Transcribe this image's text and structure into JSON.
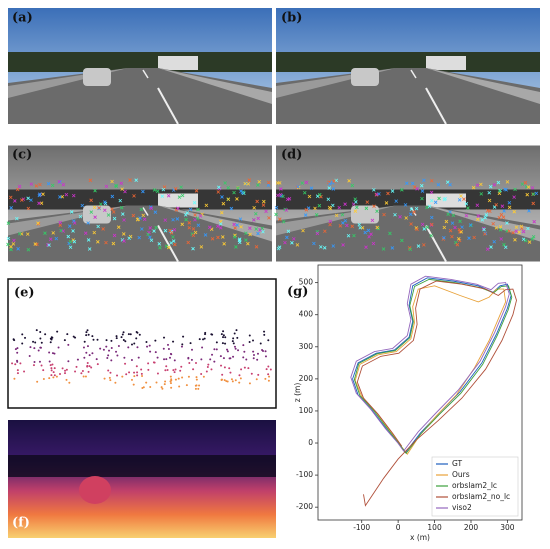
{
  "panels": {
    "a": "(a)",
    "b": "(b)",
    "c": "(c)",
    "d": "(d)",
    "e": "(e)",
    "f": "(f)",
    "g": "(g)"
  },
  "chart_data": {
    "type": "line",
    "xlabel": "x (m)",
    "ylabel": "z (m)",
    "xlim": [
      -220,
      340
    ],
    "ylim": [
      -240,
      555
    ],
    "xticks": [
      -100,
      0,
      100,
      200,
      300
    ],
    "yticks": [
      -200,
      -100,
      0,
      100,
      200,
      300,
      400,
      500
    ],
    "legend": "lower right",
    "series": [
      {
        "name": "GT",
        "color": "#1f5fbf",
        "x": [
          0,
          -30,
          -70,
          -110,
          -125,
          -110,
          -60,
          -10,
          30,
          40,
          30,
          40,
          80,
          150,
          220,
          260,
          280,
          300,
          310,
          300,
          270,
          230,
          170,
          110,
          60,
          20,
          0
        ],
        "values": [
          0,
          40,
          100,
          150,
          200,
          250,
          280,
          290,
          330,
          380,
          430,
          490,
          515,
          505,
          490,
          470,
          490,
          495,
          460,
          420,
          340,
          250,
          160,
          90,
          30,
          -30,
          0
        ]
      },
      {
        "name": "Ours",
        "color": "#e8a23a",
        "x": [
          5,
          -20,
          -60,
          -100,
          -118,
          -105,
          -55,
          -5,
          35,
          45,
          40,
          55,
          100,
          170,
          220,
          250,
          270,
          290,
          295,
          280,
          250,
          210,
          160,
          105,
          60,
          25,
          5
        ],
        "values": [
          -5,
          35,
          95,
          145,
          195,
          245,
          275,
          285,
          325,
          375,
          425,
          480,
          490,
          460,
          440,
          455,
          480,
          480,
          440,
          400,
          320,
          235,
          150,
          85,
          25,
          -35,
          -5
        ]
      },
      {
        "name": "orbslam2_lc",
        "color": "#3ca03c",
        "x": [
          3,
          -25,
          -65,
          -105,
          -120,
          -108,
          -58,
          -8,
          32,
          42,
          32,
          45,
          85,
          155,
          225,
          262,
          283,
          303,
          312,
          302,
          272,
          232,
          172,
          112,
          62,
          22,
          3
        ],
        "values": [
          -3,
          38,
          98,
          148,
          198,
          248,
          278,
          288,
          328,
          378,
          428,
          488,
          510,
          500,
          485,
          468,
          488,
          490,
          455,
          415,
          335,
          245,
          155,
          88,
          28,
          -32,
          -3
        ]
      },
      {
        "name": "orbslam2_no_lc",
        "color": "#b0503a",
        "x": [
          10,
          -15,
          -55,
          -95,
          -112,
          -98,
          -48,
          2,
          42,
          52,
          48,
          60,
          105,
          175,
          240,
          275,
          295,
          315,
          325,
          315,
          285,
          240,
          175,
          110,
          50,
          0,
          -40,
          -75,
          -90,
          -95
        ],
        "values": [
          -10,
          30,
          90,
          140,
          190,
          240,
          270,
          280,
          320,
          370,
          420,
          480,
          505,
          495,
          480,
          460,
          478,
          480,
          445,
          400,
          320,
          230,
          140,
          70,
          10,
          -50,
          -110,
          -170,
          -195,
          -160
        ]
      },
      {
        "name": "viso2",
        "color": "#9467bd",
        "x": [
          -2,
          -35,
          -75,
          -115,
          -130,
          -115,
          -65,
          -15,
          25,
          35,
          25,
          35,
          75,
          145,
          215,
          255,
          275,
          295,
          305,
          295,
          265,
          225,
          165,
          105,
          55,
          15,
          -2
        ],
        "values": [
          2,
          45,
          105,
          155,
          205,
          255,
          285,
          295,
          335,
          385,
          435,
          495,
          520,
          510,
          495,
          478,
          498,
          500,
          465,
          425,
          345,
          255,
          165,
          95,
          35,
          -25,
          2
        ]
      }
    ]
  }
}
